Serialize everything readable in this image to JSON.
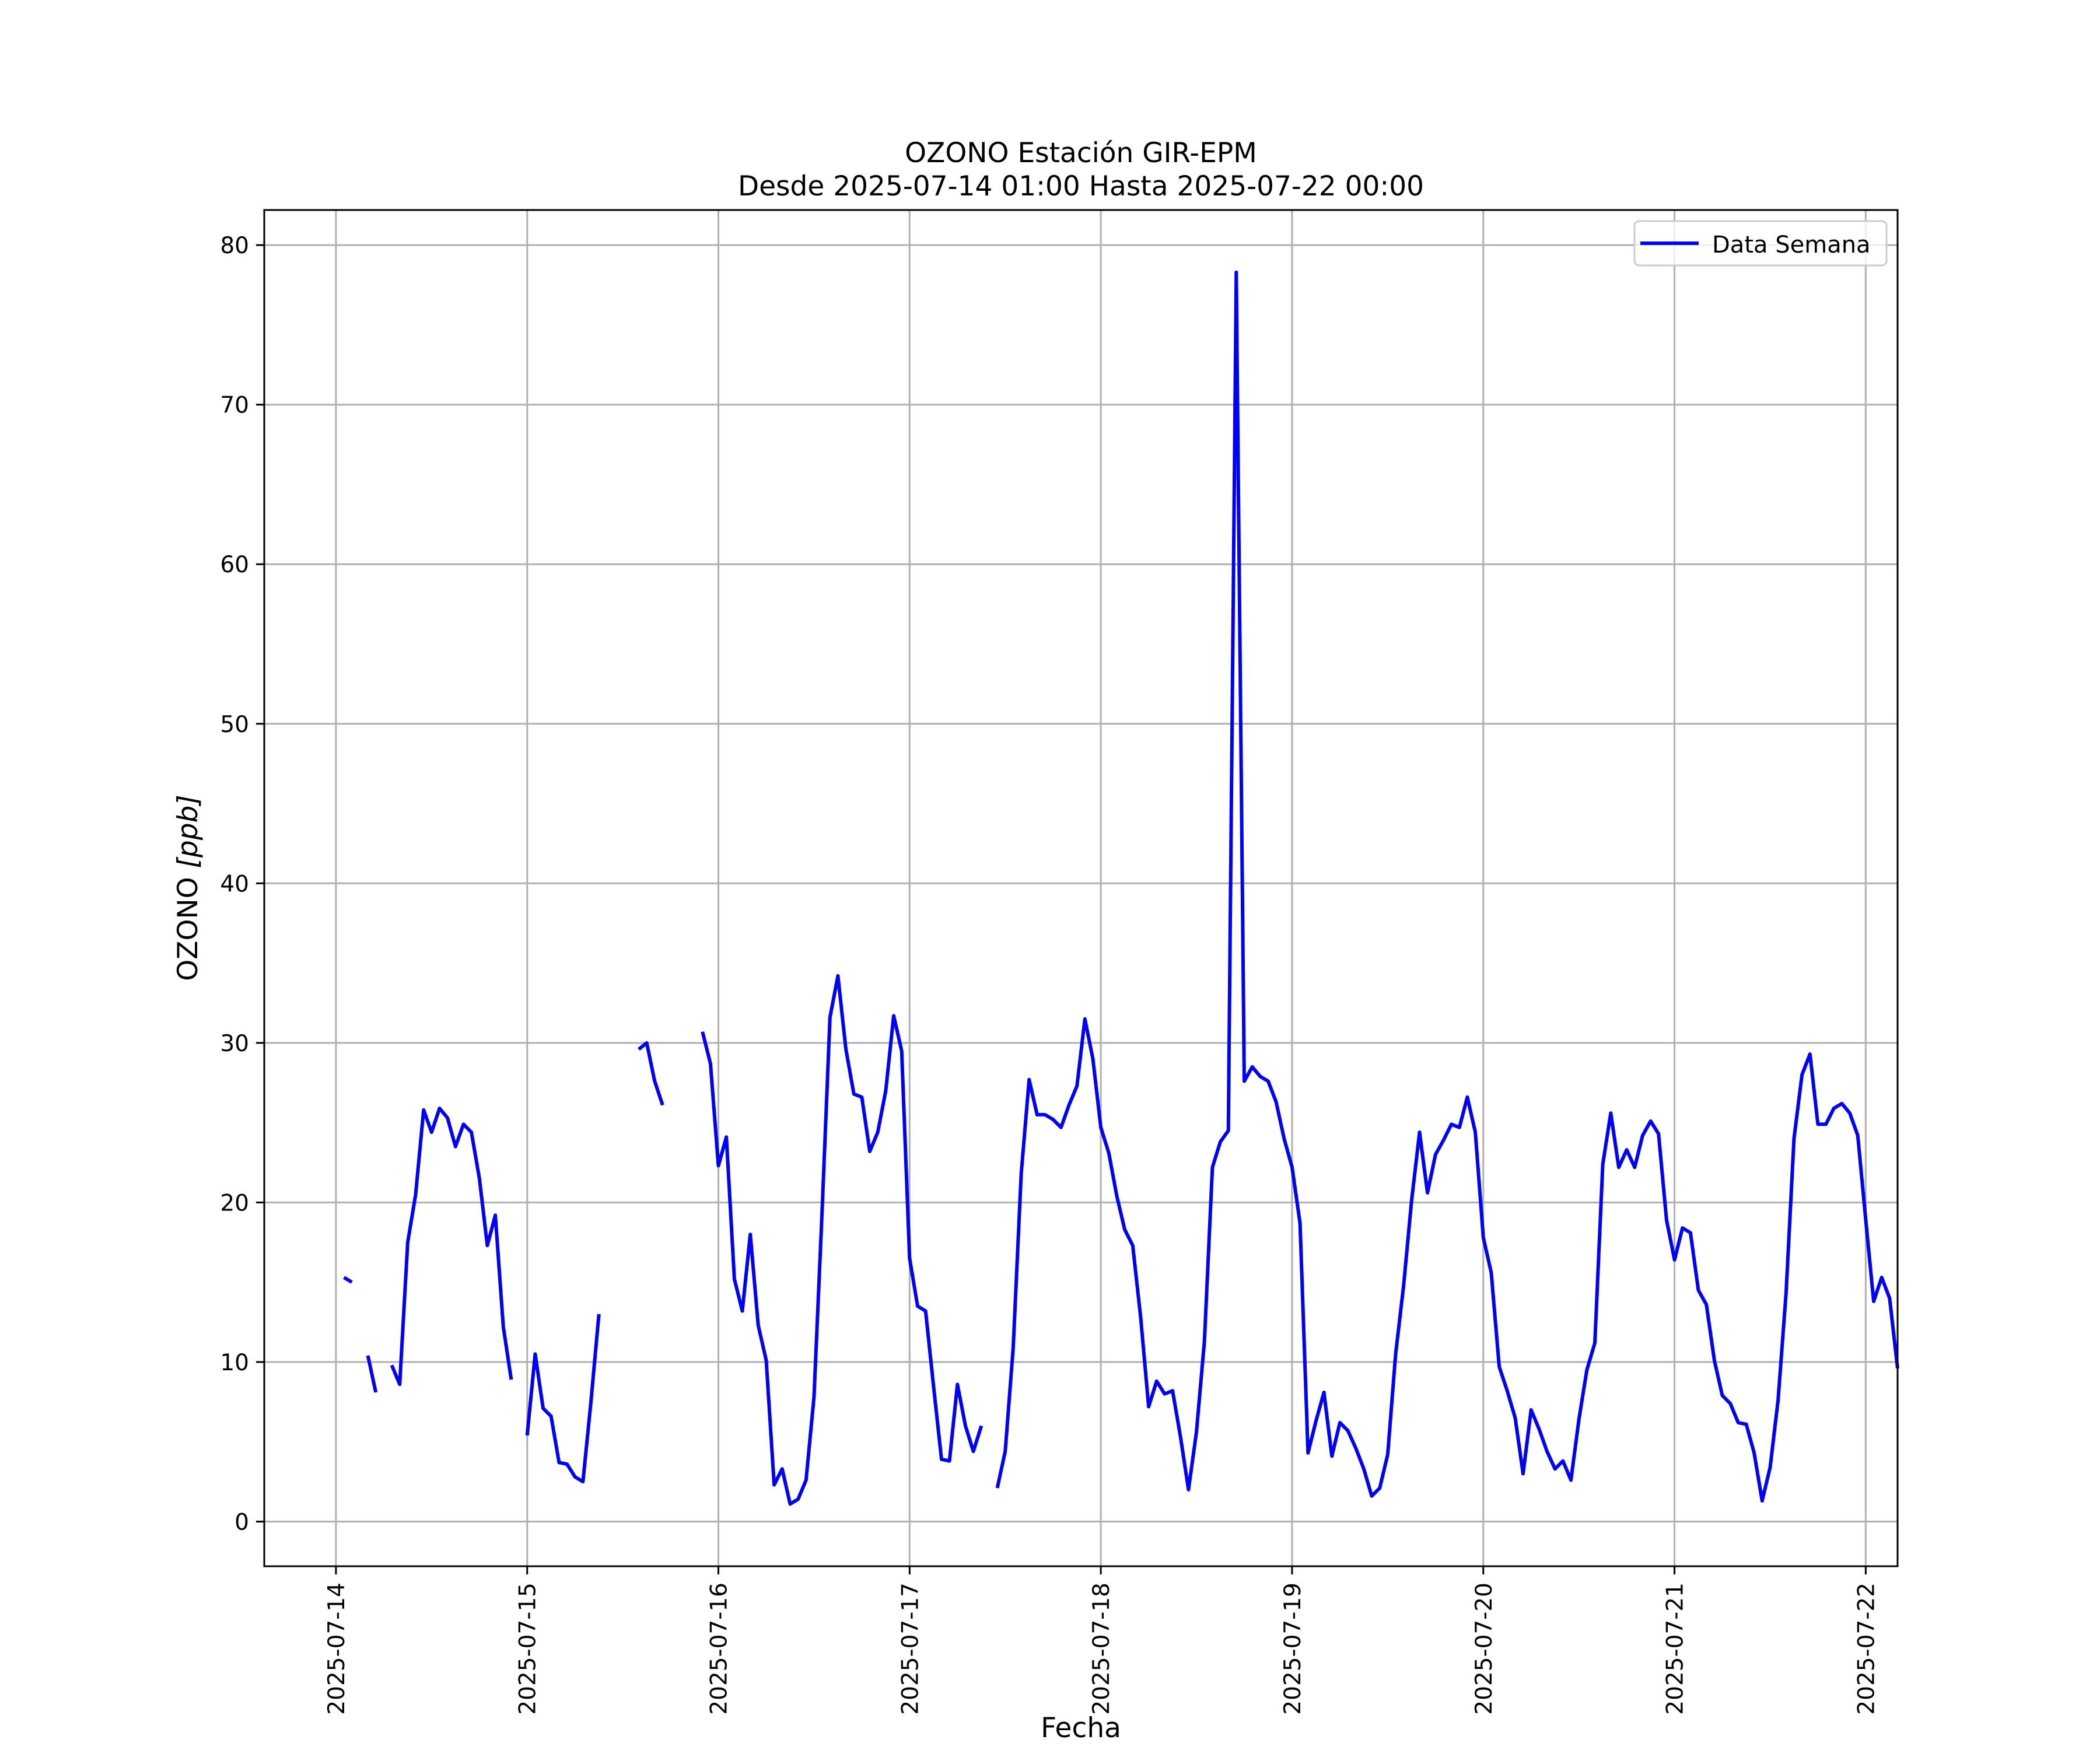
{
  "chart_data": {
    "type": "line",
    "title": "OZONO Estación GIR-EPM",
    "subtitle": "Desde 2025-07-14 01:00 Hasta 2025-07-22 00:00",
    "xlabel": "Fecha",
    "ylabel_main": "OZONO ",
    "ylabel_unit": "[ppb]",
    "x_type": "datetime",
    "xlim": [
      "2025-07-13 15:00",
      "2025-07-22 04:00"
    ],
    "ylim": [
      -2.8,
      82.2
    ],
    "yticks": [
      0,
      10,
      20,
      30,
      40,
      50,
      60,
      70,
      80
    ],
    "xticks": [
      "2025-07-14",
      "2025-07-15",
      "2025-07-16",
      "2025-07-17",
      "2025-07-18",
      "2025-07-19",
      "2025-07-20",
      "2025-07-21",
      "2025-07-22"
    ],
    "grid": true,
    "legend_position": "top-right",
    "line_color": "#0000ff",
    "series": [
      {
        "name": "Data Semana",
        "start": "2025-07-14 01:00",
        "step_hours": 1,
        "values": [
          15.3,
          15.0,
          null,
          10.4,
          8.1,
          null,
          9.8,
          8.6,
          17.5,
          20.5,
          25.8,
          24.4,
          25.9,
          25.3,
          23.5,
          24.9,
          24.4,
          21.5,
          17.3,
          19.2,
          12.2,
          8.9,
          null,
          5.4,
          10.5,
          7.1,
          6.6,
          3.7,
          3.6,
          2.8,
          2.5,
          7.5,
          13.0,
          null,
          null,
          null,
          null,
          29.6,
          30.0,
          27.6,
          26.1,
          null,
          null,
          null,
          null,
          30.7,
          28.7,
          22.3,
          24.1,
          15.2,
          13.2,
          18.0,
          12.3,
          10.1,
          2.3,
          3.3,
          1.1,
          1.4,
          2.6,
          7.8,
          19.3,
          31.6,
          34.2,
          29.6,
          26.8,
          26.6,
          23.2,
          24.4,
          27.0,
          31.7,
          29.5,
          16.5,
          13.5,
          13.2,
          8.5,
          3.9,
          3.8,
          8.6,
          6.0,
          4.4,
          6.0,
          null,
          2.1,
          4.4,
          10.9,
          21.8,
          27.7,
          25.5,
          25.5,
          25.2,
          24.7,
          26.1,
          27.3,
          31.5,
          29.0,
          24.7,
          23.1,
          20.4,
          18.3,
          17.3,
          12.8,
          7.2,
          8.8,
          8.0,
          8.2,
          5.3,
          2.0,
          5.6,
          11.3,
          22.2,
          23.8,
          24.5,
          78.3,
          27.6,
          28.5,
          27.9,
          27.6,
          26.3,
          24.0,
          22.2,
          18.7,
          4.3,
          6.3,
          8.1,
          4.1,
          6.2,
          5.7,
          4.6,
          3.3,
          1.6,
          2.1,
          4.2,
          10.5,
          14.8,
          20.1,
          24.4,
          20.6,
          23.0,
          23.9,
          24.9,
          24.7,
          26.6,
          24.4,
          17.8,
          15.6,
          9.7,
          8.2,
          6.5,
          3.0,
          7.0,
          5.8,
          4.4,
          3.3,
          3.8,
          2.6,
          6.4,
          9.5,
          11.2,
          22.4,
          25.6,
          22.2,
          23.3,
          22.2,
          24.2,
          25.1,
          24.3,
          18.9,
          16.4,
          18.4,
          18.1,
          14.5,
          13.6,
          10.1,
          7.9,
          7.4,
          6.2,
          6.1,
          4.3,
          1.3,
          3.4,
          7.6,
          14.3,
          24.0,
          28.0,
          29.3,
          24.9,
          24.9,
          25.9,
          26.2,
          25.6,
          24.2,
          18.9,
          13.8,
          15.3,
          14.0,
          9.6
        ]
      }
    ]
  }
}
